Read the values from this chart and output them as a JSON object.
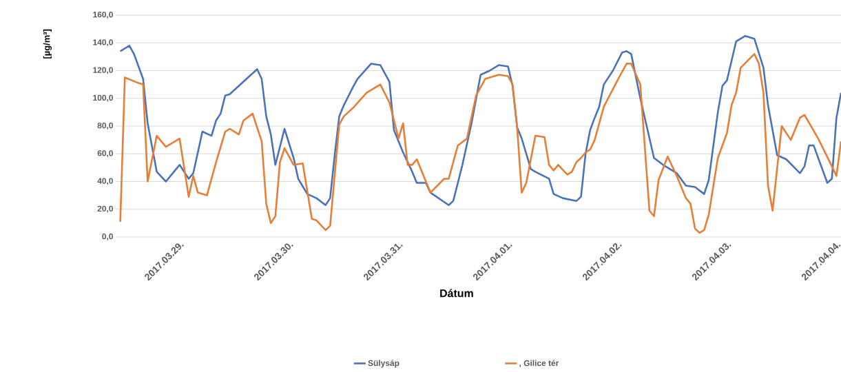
{
  "chart_data": {
    "type": "line",
    "xlabel": "Dátum",
    "ylabel": "[µg/m³]",
    "xlim": [
      "2017-03-28T10:00",
      "2017-04-04T01:00"
    ],
    "xticks": [
      {
        "value": "2017-03-29",
        "label": "2017.03.29."
      },
      {
        "value": "2017-03-30",
        "label": "2017.03.30."
      },
      {
        "value": "2017-03-31",
        "label": "2017.03.31."
      },
      {
        "value": "2017-04-01",
        "label": "2017.04.01."
      },
      {
        "value": "2017-04-02",
        "label": "2017.04.02."
      },
      {
        "value": "2017-04-03",
        "label": "2017.04.03."
      },
      {
        "value": "2017-04-04",
        "label": "2017.04.04."
      }
    ],
    "ylim": [
      0,
      160
    ],
    "yticks": [
      {
        "value": 0,
        "label": "0,0"
      },
      {
        "value": 20,
        "label": "20,0"
      },
      {
        "value": 40,
        "label": "40,0"
      },
      {
        "value": 60,
        "label": "60,0"
      },
      {
        "value": 80,
        "label": "80,0"
      },
      {
        "value": 100,
        "label": "100,0"
      },
      {
        "value": 120,
        "label": "120,0"
      },
      {
        "value": 140,
        "label": "140,0"
      },
      {
        "value": 160,
        "label": "160,0"
      }
    ],
    "grid": "y",
    "legend": "bottom",
    "marker": "none",
    "line_style": "solid",
    "series": [
      {
        "name": "Sülysáp",
        "color": "#4a72b8",
        "x": [
          "2017-03-28T11:00",
          "2017-03-28T13:00",
          "2017-03-28T14:00",
          "2017-03-28T16:00",
          "2017-03-28T17:00",
          "2017-03-28T19:00",
          "2017-03-28T21:00",
          "2017-03-29T00:00",
          "2017-03-29T02:00",
          "2017-03-29T03:00",
          "2017-03-29T05:00",
          "2017-03-29T07:00",
          "2017-03-29T08:00",
          "2017-03-29T09:00",
          "2017-03-29T10:00",
          "2017-03-29T11:00",
          "2017-03-29T14:00",
          "2017-03-29T17:00",
          "2017-03-29T18:00",
          "2017-03-29T19:00",
          "2017-03-29T20:00",
          "2017-03-29T21:00",
          "2017-03-29T23:00",
          "2017-03-30T01:00",
          "2017-03-30T02:00",
          "2017-03-30T04:00",
          "2017-03-30T06:00",
          "2017-03-30T08:00",
          "2017-03-30T09:00",
          "2017-03-30T10:00",
          "2017-03-30T11:00",
          "2017-03-30T12:00",
          "2017-03-30T14:00",
          "2017-03-30T15:00",
          "2017-03-30T18:00",
          "2017-03-30T20:00",
          "2017-03-30T22:00",
          "2017-03-30T23:00",
          "2017-03-31T01:00",
          "2017-03-31T03:00",
          "2017-03-31T04:00",
          "2017-03-31T06:00",
          "2017-03-31T07:00",
          "2017-03-31T11:00",
          "2017-03-31T12:00",
          "2017-03-31T14:00",
          "2017-03-31T16:00",
          "2017-03-31T18:00",
          "2017-03-31T20:00",
          "2017-03-31T22:00",
          "2017-04-01T00:00",
          "2017-04-01T01:00",
          "2017-04-01T02:00",
          "2017-04-01T03:00",
          "2017-04-01T05:00",
          "2017-04-01T06:00",
          "2017-04-01T09:00",
          "2017-04-01T10:00",
          "2017-04-01T12:00",
          "2017-04-01T15:00",
          "2017-04-01T16:00",
          "2017-04-01T17:00",
          "2017-04-01T18:00",
          "2017-04-01T19:00",
          "2017-04-01T20:00",
          "2017-04-01T21:00",
          "2017-04-01T23:00",
          "2017-04-02T01:00",
          "2017-04-02T02:00",
          "2017-04-02T03:00",
          "2017-04-02T05:00",
          "2017-04-02T08:00",
          "2017-04-02T10:00",
          "2017-04-02T13:00",
          "2017-04-02T15:00",
          "2017-04-02T17:00",
          "2017-04-02T19:00",
          "2017-04-02T20:00",
          "2017-04-02T22:00",
          "2017-04-02T23:00",
          "2017-04-03T00:00",
          "2017-04-03T02:00",
          "2017-04-03T04:00",
          "2017-04-03T06:00",
          "2017-04-03T08:00",
          "2017-04-03T09:00",
          "2017-04-03T11:00",
          "2017-04-03T13:00",
          "2017-04-03T16:00",
          "2017-04-03T17:00",
          "2017-04-03T18:00",
          "2017-04-03T19:00",
          "2017-04-03T22:00",
          "2017-04-03T23:00",
          "2017-04-04T00:00",
          "2017-04-04T01:00"
        ],
        "values": [
          134,
          138,
          132,
          114,
          82,
          47,
          40,
          52,
          42,
          46,
          76,
          73,
          84,
          89,
          102,
          103,
          112,
          121,
          114,
          87,
          74,
          52,
          78,
          57,
          42,
          31,
          28,
          23,
          28,
          59,
          87,
          95,
          108,
          114,
          125,
          124,
          112,
          77,
          61,
          47,
          39,
          39,
          32,
          23,
          26,
          52,
          82,
          117,
          120,
          124,
          123,
          109,
          79,
          71,
          49,
          47,
          42,
          31,
          28,
          26,
          29,
          60,
          77,
          86,
          94,
          110,
          120,
          133,
          134,
          132,
          100,
          57,
          52,
          46,
          37,
          36,
          31,
          41,
          90,
          109,
          113,
          141,
          145,
          143,
          122,
          95,
          59,
          56,
          46,
          51,
          66,
          66,
          39,
          42,
          86,
          104
        ]
      },
      {
        "name": ", Gilice tér",
        "color": "#e67e35",
        "x": [
          "2017-03-28T11:00",
          "2017-03-28T12:00",
          "2017-03-28T15:00",
          "2017-03-28T16:00",
          "2017-03-28T17:00",
          "2017-03-28T19:00",
          "2017-03-28T21:00",
          "2017-03-29T00:00",
          "2017-03-29T02:00",
          "2017-03-29T03:00",
          "2017-03-29T04:00",
          "2017-03-29T06:00",
          "2017-03-29T08:00",
          "2017-03-29T10:00",
          "2017-03-29T11:00",
          "2017-03-29T13:00",
          "2017-03-29T14:00",
          "2017-03-29T16:00",
          "2017-03-29T18:00",
          "2017-03-29T19:00",
          "2017-03-29T20:00",
          "2017-03-29T21:00",
          "2017-03-29T22:00",
          "2017-03-29T23:00",
          "2017-03-30T01:00",
          "2017-03-30T03:00",
          "2017-03-30T05:00",
          "2017-03-30T06:00",
          "2017-03-30T08:00",
          "2017-03-30T09:00",
          "2017-03-30T11:00",
          "2017-03-30T12:00",
          "2017-03-30T14:00",
          "2017-03-30T17:00",
          "2017-03-30T20:00",
          "2017-03-30T22:00",
          "2017-03-31T00:00",
          "2017-03-31T01:00",
          "2017-03-31T02:00",
          "2017-03-31T03:00",
          "2017-03-31T04:00",
          "2017-03-31T07:00",
          "2017-03-31T10:00",
          "2017-03-31T11:00",
          "2017-03-31T13:00",
          "2017-03-31T15:00",
          "2017-03-31T17:00",
          "2017-03-31T19:00",
          "2017-03-31T22:00",
          "2017-04-01T00:00",
          "2017-04-01T01:00",
          "2017-04-01T02:00",
          "2017-04-01T03:00",
          "2017-04-01T04:00",
          "2017-04-01T06:00",
          "2017-04-01T08:00",
          "2017-04-01T09:00",
          "2017-04-01T10:00",
          "2017-04-01T11:00",
          "2017-04-01T13:00",
          "2017-04-01T14:00",
          "2017-04-01T15:00",
          "2017-04-01T16:00",
          "2017-04-01T17:00",
          "2017-04-01T18:00",
          "2017-04-01T19:00",
          "2017-04-01T21:00",
          "2017-04-02T00:00",
          "2017-04-02T01:00",
          "2017-04-02T02:00",
          "2017-04-02T03:00",
          "2017-04-02T05:00",
          "2017-04-02T07:00",
          "2017-04-02T08:00",
          "2017-04-02T09:00",
          "2017-04-02T11:00",
          "2017-04-02T13:00",
          "2017-04-02T15:00",
          "2017-04-02T16:00",
          "2017-04-02T17:00",
          "2017-04-02T18:00",
          "2017-04-02T19:00",
          "2017-04-02T20:00",
          "2017-04-02T22:00",
          "2017-04-03T00:00",
          "2017-04-03T01:00",
          "2017-04-03T02:00",
          "2017-04-03T03:00",
          "2017-04-03T06:00",
          "2017-04-03T07:00",
          "2017-04-03T08:00",
          "2017-04-03T09:00",
          "2017-04-03T10:00",
          "2017-04-03T12:00",
          "2017-04-03T14:00",
          "2017-04-03T16:00",
          "2017-04-03T17:00",
          "2017-04-03T20:00",
          "2017-04-03T23:00",
          "2017-04-04T00:00",
          "2017-04-04T01:00"
        ],
        "values": [
          11,
          115,
          111,
          110,
          40,
          73,
          65,
          71,
          29,
          44,
          32,
          30,
          54,
          76,
          78,
          74,
          84,
          89,
          69,
          24,
          10,
          15,
          54,
          64,
          52,
          53,
          13,
          12,
          5,
          8,
          81,
          87,
          93,
          104,
          110,
          97,
          71,
          82,
          52,
          52,
          56,
          32,
          42,
          42,
          66,
          71,
          102,
          114,
          117,
          116,
          110,
          79,
          32,
          39,
          73,
          72,
          52,
          48,
          52,
          45,
          47,
          54,
          57,
          61,
          63,
          70,
          94,
          113,
          119,
          125,
          125,
          110,
          19,
          15,
          41,
          58,
          44,
          28,
          24,
          6,
          3,
          5,
          16,
          57,
          75,
          95,
          104,
          122,
          132,
          125,
          104,
          37,
          19,
          80,
          70,
          86,
          88,
          71,
          51,
          44,
          69
        ]
      }
    ]
  }
}
